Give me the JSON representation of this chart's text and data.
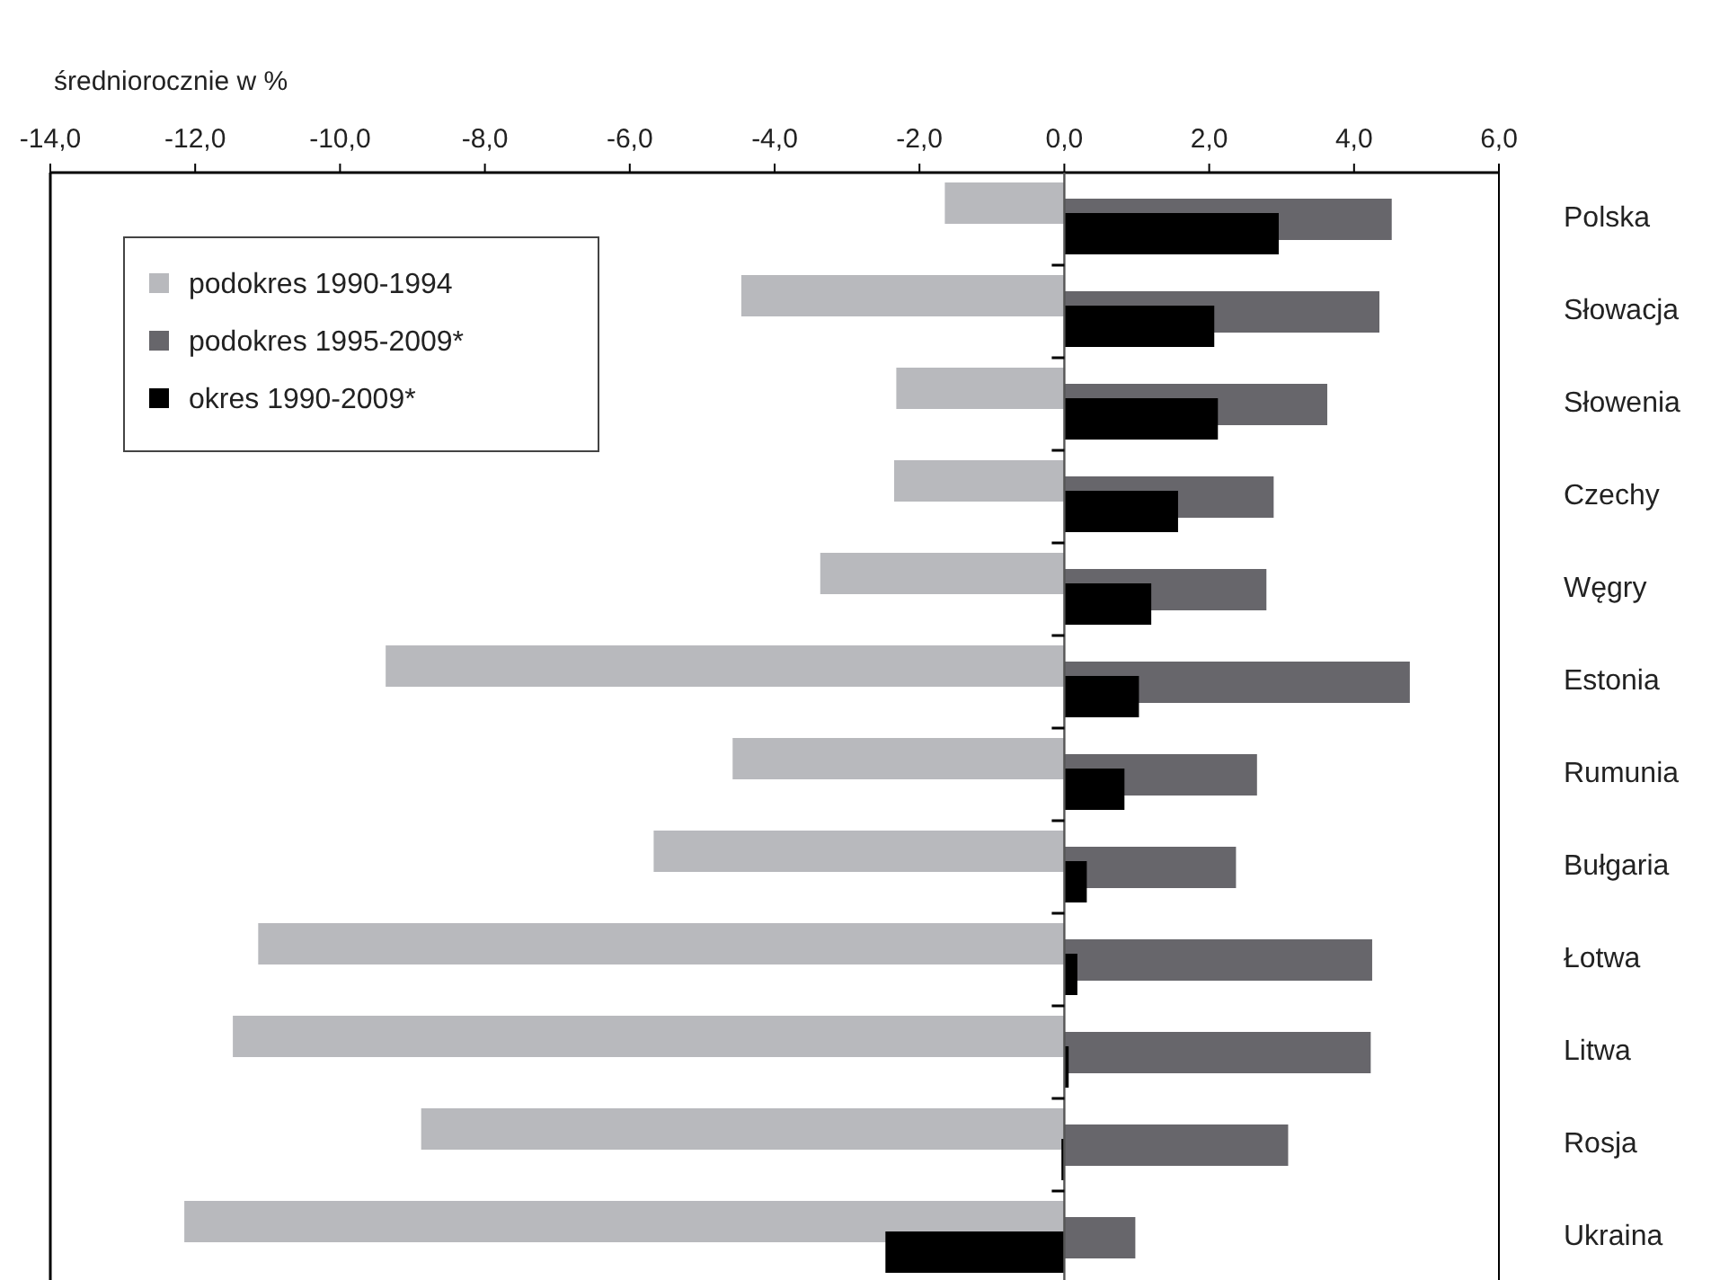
{
  "chart_data": {
    "type": "bar",
    "orientation": "horizontal",
    "xlabel": "średniorocznie w %",
    "categories": [
      "Polska",
      "Słowacja",
      "Słowenia",
      "Czechy",
      "Węgry",
      "Estonia",
      "Rumunia",
      "Bułgaria",
      "Łotwa",
      "Litwa",
      "Rosja",
      "Ukraina"
    ],
    "series": [
      {
        "name": "podokres 1990-1994",
        "color": "#b8b9bd",
        "values": [
          -1.65,
          -4.46,
          -2.32,
          -2.35,
          -3.37,
          -9.37,
          -4.58,
          -5.67,
          -11.13,
          -11.48,
          -8.88,
          -12.15
        ]
      },
      {
        "name": "podokres 1995-2009*",
        "color": "#67666b",
        "values": [
          4.52,
          4.35,
          3.63,
          2.89,
          2.79,
          4.77,
          2.66,
          2.37,
          4.25,
          4.23,
          3.09,
          0.98
        ]
      },
      {
        "name": "okres 1990-2009*",
        "color": "#000000",
        "values": [
          2.96,
          2.07,
          2.12,
          1.57,
          1.2,
          1.03,
          0.83,
          0.31,
          0.18,
          0.06,
          -0.04,
          -2.47
        ]
      }
    ],
    "xlim": [
      -14,
      6
    ],
    "xticks": [
      {
        "value": -14,
        "label": "-14,0"
      },
      {
        "value": -12,
        "label": "-12,0"
      },
      {
        "value": -10,
        "label": "-10,0"
      },
      {
        "value": -8,
        "label": "-8,0"
      },
      {
        "value": -6,
        "label": "-6,0"
      },
      {
        "value": -4,
        "label": "-4,0"
      },
      {
        "value": -2,
        "label": "-2,0"
      },
      {
        "value": 0,
        "label": "0,0"
      },
      {
        "value": 2,
        "label": "2,0"
      },
      {
        "value": 4,
        "label": "4,0"
      },
      {
        "value": 6,
        "label": "6,0"
      }
    ],
    "legend": "top left"
  }
}
